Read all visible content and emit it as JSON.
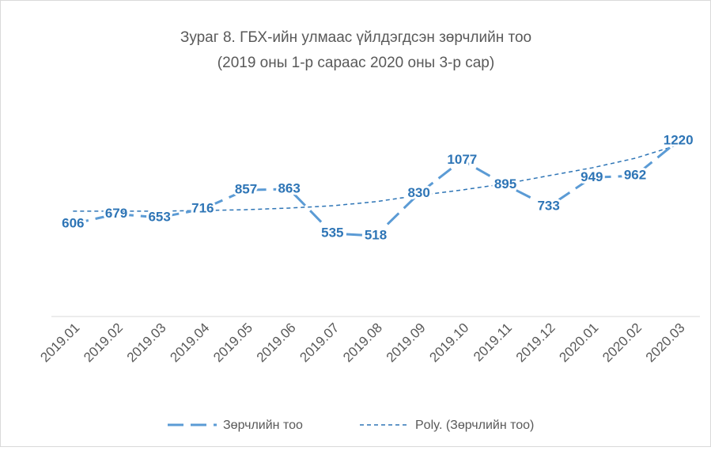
{
  "chart_data": {
    "type": "line",
    "title": "Зураг 8. ГБХ-ийн улмаас үйлдэгдсэн зөрчлийн тоо",
    "subtitle": "(2019 оны 1-р сараас 2020 оны 3-р сар)",
    "categories": [
      "2019.01",
      "2019.02",
      "2019.03",
      "2019.04",
      "2019.05",
      "2019.06",
      "2019.07",
      "2019.08",
      "2019.09",
      "2019.10",
      "2019.11",
      "2019.12",
      "2020.01",
      "2020.02",
      "2020.03"
    ],
    "ylim": [
      0,
      1400
    ],
    "series": [
      {
        "name": "Зөрчлийн тоо",
        "color": "#5b9bd5",
        "values": [
          606,
          679,
          653,
          716,
          857,
          863,
          535,
          518,
          830,
          1077,
          895,
          733,
          949,
          962,
          1220
        ]
      },
      {
        "name": "Poly. (Зөрчлийн тоо)",
        "color": "#2e75b6",
        "values": [
          700,
          700,
          700,
          705,
          711,
          723,
          740,
          770,
          817,
          857,
          903,
          962,
          1020,
          1091,
          1190
        ]
      }
    ],
    "legend": "bottom"
  }
}
